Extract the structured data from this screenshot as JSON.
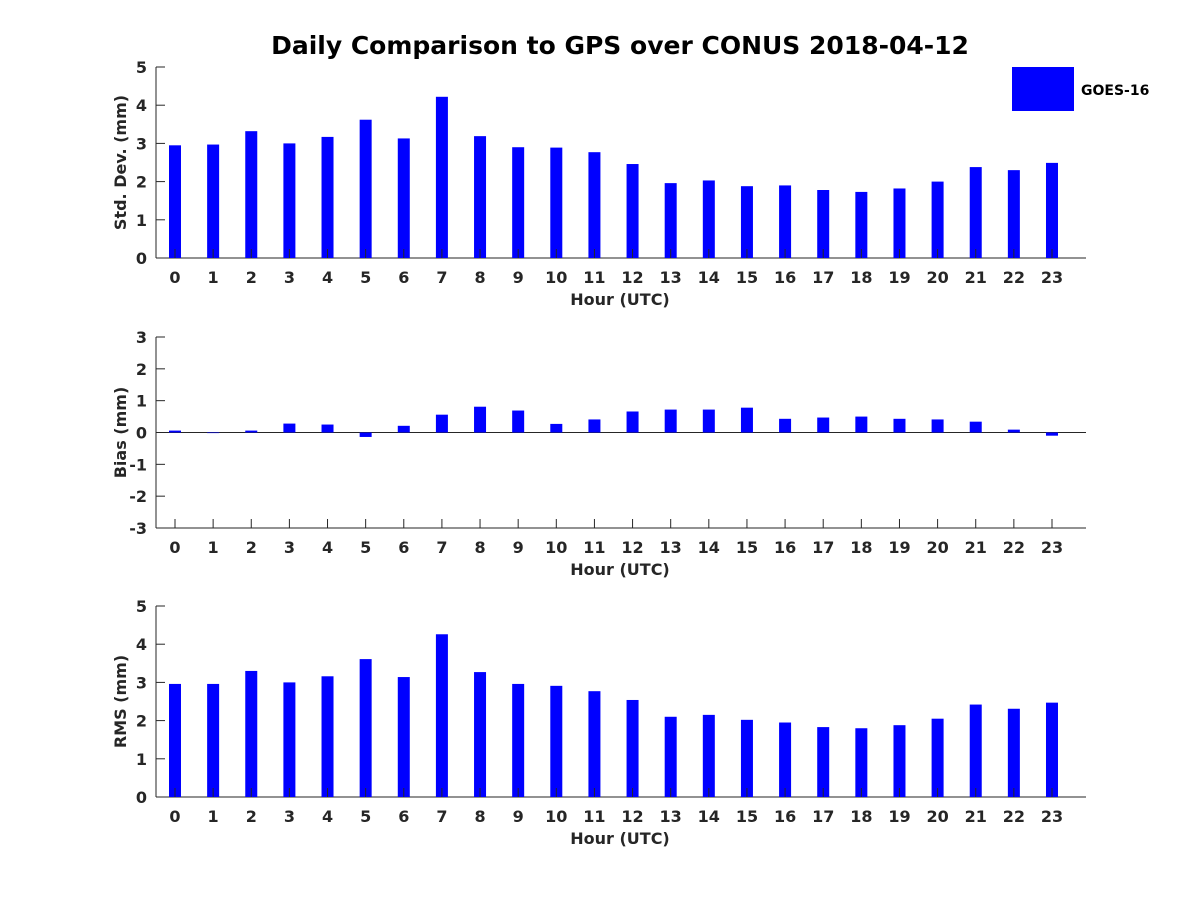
{
  "title": "Daily Comparison to GPS over CONUS 2018-04-12",
  "bar_color": "#0000ff",
  "legend": {
    "label": "GOES-16"
  },
  "chart_data": [
    {
      "type": "bar",
      "name": "std",
      "title": "Daily Comparison to GPS over CONUS 2018-04-12",
      "xlabel": "Hour (UTC)",
      "ylabel": "Std. Dev. (mm)",
      "ylim": [
        0,
        5
      ],
      "yticks": [
        0,
        1,
        2,
        3,
        4,
        5
      ],
      "categories": [
        "0",
        "1",
        "2",
        "3",
        "4",
        "5",
        "6",
        "7",
        "8",
        "9",
        "10",
        "11",
        "12",
        "13",
        "14",
        "15",
        "16",
        "17",
        "18",
        "19",
        "20",
        "21",
        "22",
        "23"
      ],
      "series": [
        {
          "name": "GOES-16",
          "values": [
            2.95,
            2.97,
            3.32,
            3.0,
            3.17,
            3.62,
            3.13,
            4.22,
            3.19,
            2.9,
            2.89,
            2.77,
            2.46,
            1.96,
            2.03,
            1.88,
            1.9,
            1.78,
            1.73,
            1.82,
            2.0,
            2.38,
            2.3,
            2.49
          ]
        }
      ]
    },
    {
      "type": "bar",
      "name": "bias",
      "xlabel": "Hour (UTC)",
      "ylabel": "Bias (mm)",
      "ylim": [
        -3,
        3
      ],
      "yticks": [
        -3,
        -2,
        -1,
        0,
        1,
        2,
        3
      ],
      "categories": [
        "0",
        "1",
        "2",
        "3",
        "4",
        "5",
        "6",
        "7",
        "8",
        "9",
        "10",
        "11",
        "12",
        "13",
        "14",
        "15",
        "16",
        "17",
        "18",
        "19",
        "20",
        "21",
        "22",
        "23"
      ],
      "series": [
        {
          "name": "GOES-16",
          "values": [
            0.06,
            0.0,
            0.06,
            0.28,
            0.25,
            -0.14,
            0.21,
            0.56,
            0.81,
            0.69,
            0.27,
            0.41,
            0.66,
            0.72,
            0.72,
            0.78,
            0.43,
            0.47,
            0.5,
            0.43,
            0.41,
            0.34,
            0.09,
            -0.1
          ]
        }
      ]
    },
    {
      "type": "bar",
      "name": "rms",
      "xlabel": "Hour (UTC)",
      "ylabel": "RMS (mm)",
      "ylim": [
        0,
        5
      ],
      "yticks": [
        0,
        1,
        2,
        3,
        4,
        5
      ],
      "categories": [
        "0",
        "1",
        "2",
        "3",
        "4",
        "5",
        "6",
        "7",
        "8",
        "9",
        "10",
        "11",
        "12",
        "13",
        "14",
        "15",
        "16",
        "17",
        "18",
        "19",
        "20",
        "21",
        "22",
        "23"
      ],
      "series": [
        {
          "name": "GOES-16",
          "values": [
            2.96,
            2.96,
            3.3,
            3.0,
            3.16,
            3.61,
            3.14,
            4.26,
            3.27,
            2.96,
            2.91,
            2.77,
            2.54,
            2.1,
            2.15,
            2.02,
            1.95,
            1.83,
            1.8,
            1.88,
            2.05,
            2.42,
            2.31,
            2.47
          ]
        }
      ]
    }
  ]
}
